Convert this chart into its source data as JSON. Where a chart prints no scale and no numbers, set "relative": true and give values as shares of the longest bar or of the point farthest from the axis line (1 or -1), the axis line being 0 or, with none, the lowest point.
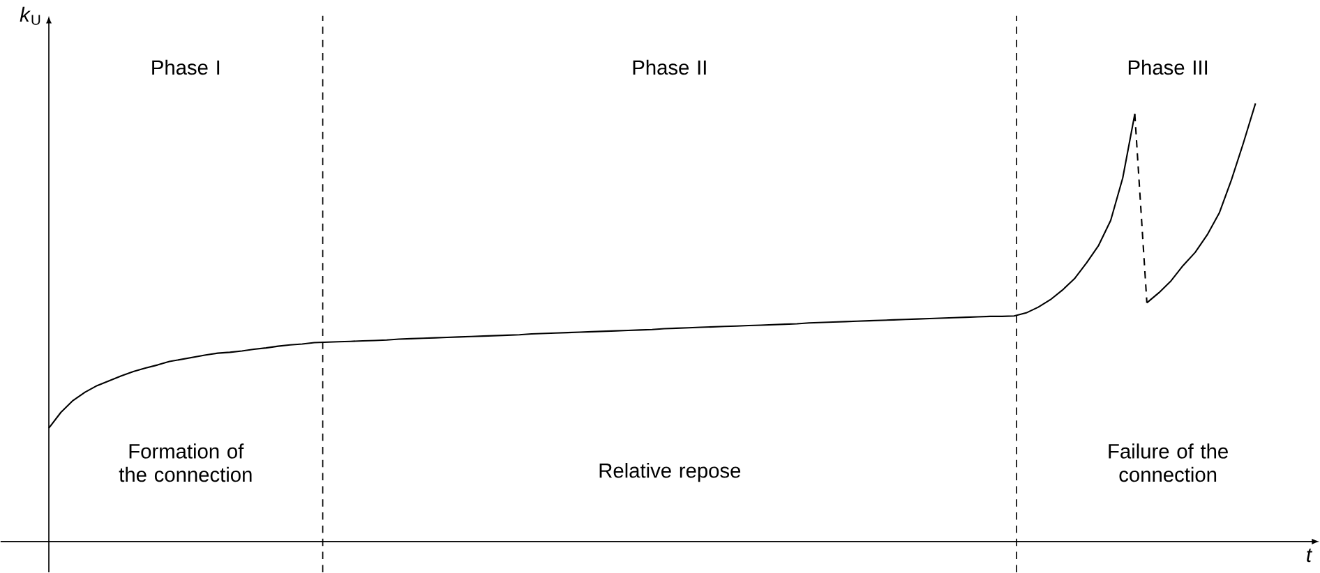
{
  "chart_data": {
    "type": "line",
    "relative": true,
    "xlabel": "*t*",
    "ylabel": "*k*$_{U}$",
    "line_style": "solid",
    "marker": "none",
    "categories": [
      null,
      null,
      null,
      null,
      null,
      null,
      null,
      null,
      null,
      null,
      null,
      null,
      null,
      null,
      null,
      null,
      null,
      null,
      null,
      null,
      null,
      null,
      null,
      null,
      null,
      null,
      null,
      null,
      null,
      null,
      null,
      null,
      null,
      null,
      null,
      null,
      null,
      null,
      null,
      null,
      null,
      null,
      null,
      null,
      null,
      null,
      null,
      null,
      null,
      null,
      null,
      null,
      null,
      null,
      null,
      null,
      null,
      null,
      null,
      null,
      null,
      null,
      null,
      null,
      null,
      null,
      null,
      null,
      null,
      null,
      null,
      null,
      null,
      null,
      null,
      null,
      null,
      null,
      null,
      null,
      null,
      null,
      null,
      null,
      null,
      null,
      null,
      null,
      null,
      null,
      null,
      null,
      null,
      null,
      null,
      null,
      null,
      null,
      null,
      null,
      null
    ],
    "series": [
      {
        "color": "#000000",
        "values": [
          0.259,
          0.295,
          0.322,
          0.341,
          0.356,
          0.367,
          0.378,
          0.388,
          0.396,
          0.403,
          0.411,
          0.416,
          0.421,
          0.426,
          0.43,
          0.432,
          0.435,
          0.439,
          0.442,
          0.446,
          0.449,
          0.451,
          0.454,
          0.455,
          0.456,
          0.457,
          0.458,
          0.459,
          0.46,
          0.462,
          0.463,
          0.464,
          0.465,
          0.466,
          0.467,
          0.468,
          0.469,
          0.47,
          0.471,
          0.472,
          0.474,
          0.475,
          0.476,
          0.477,
          0.478,
          0.479,
          0.48,
          0.481,
          0.482,
          0.483,
          0.484,
          0.486,
          0.487,
          0.488,
          0.489,
          0.49,
          0.491,
          0.492,
          0.493,
          0.494,
          0.495,
          0.496,
          0.497,
          0.499,
          0.5,
          0.501,
          0.502,
          0.503,
          0.504,
          0.505,
          0.506,
          0.507,
          0.508,
          0.509,
          0.51,
          0.511,
          0.512,
          0.513,
          0.514,
          0.514,
          0.515,
          0.522,
          0.535,
          0.552,
          0.574,
          0.6,
          0.636,
          0.676,
          0.733,
          0.83,
          0.976,
          null,
          null,
          null,
          null,
          null,
          null,
          null,
          null,
          null,
          null
        ]
      },
      {
        "color": "#000000",
        "line_style": "dashed",
        "values": [
          null,
          null,
          null,
          null,
          null,
          null,
          null,
          null,
          null,
          null,
          null,
          null,
          null,
          null,
          null,
          null,
          null,
          null,
          null,
          null,
          null,
          null,
          null,
          null,
          null,
          null,
          null,
          null,
          null,
          null,
          null,
          null,
          null,
          null,
          null,
          null,
          null,
          null,
          null,
          null,
          null,
          null,
          null,
          null,
          null,
          null,
          null,
          null,
          null,
          null,
          null,
          null,
          null,
          null,
          null,
          null,
          null,
          null,
          null,
          null,
          null,
          null,
          null,
          null,
          null,
          null,
          null,
          null,
          null,
          null,
          null,
          null,
          null,
          null,
          null,
          null,
          null,
          null,
          null,
          null,
          null,
          null,
          null,
          null,
          null,
          null,
          null,
          null,
          null,
          null,
          0.976,
          0.545,
          null,
          null,
          null,
          null,
          null,
          null,
          null,
          null,
          null
        ]
      },
      {
        "color": "#000000",
        "values": [
          null,
          null,
          null,
          null,
          null,
          null,
          null,
          null,
          null,
          null,
          null,
          null,
          null,
          null,
          null,
          null,
          null,
          null,
          null,
          null,
          null,
          null,
          null,
          null,
          null,
          null,
          null,
          null,
          null,
          null,
          null,
          null,
          null,
          null,
          null,
          null,
          null,
          null,
          null,
          null,
          null,
          null,
          null,
          null,
          null,
          null,
          null,
          null,
          null,
          null,
          null,
          null,
          null,
          null,
          null,
          null,
          null,
          null,
          null,
          null,
          null,
          null,
          null,
          null,
          null,
          null,
          null,
          null,
          null,
          null,
          null,
          null,
          null,
          null,
          null,
          null,
          null,
          null,
          null,
          null,
          null,
          null,
          null,
          null,
          null,
          null,
          null,
          null,
          null,
          null,
          null,
          0.545,
          0.568,
          0.595,
          0.63,
          0.66,
          0.7,
          0.75,
          0.825,
          0.91,
          1.0
        ]
      }
    ],
    "annotations": [
      "Phase I",
      "Phase II",
      "Phase III",
      "Formation of the connection",
      "Relative repose",
      "Failure of the connection"
    ]
  }
}
